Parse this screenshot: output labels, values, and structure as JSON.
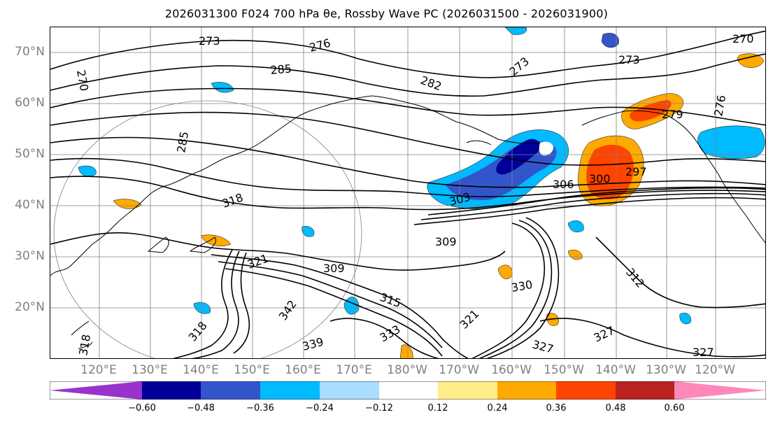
{
  "title": "2026031300 F024 700 hPa θe, Rossby Wave PC (2026031500 - 2026031900)",
  "map": {
    "lat_labels": [
      "70°N",
      "60°N",
      "50°N",
      "40°N",
      "30°N",
      "20°N"
    ],
    "lon_labels": [
      "120°E",
      "130°E",
      "140°E",
      "150°E",
      "160°E",
      "170°E",
      "180°W",
      "170°W",
      "160°W",
      "150°W",
      "140°W",
      "130°W",
      "120°W"
    ],
    "contour_labels": [
      "270",
      "273",
      "276",
      "285",
      "282",
      "273",
      "273",
      "270",
      "279",
      "276",
      "285",
      "303",
      "306",
      "300",
      "297",
      "309",
      "312",
      "309",
      "321",
      "318",
      "315",
      "342",
      "339",
      "333",
      "321",
      "327",
      "327",
      "330",
      "327",
      "318",
      "318"
    ],
    "contour_color": "#000000",
    "grid_color": "#808080"
  },
  "colorbar": {
    "colors": [
      "#9933cc",
      "#000099",
      "#3355cc",
      "#00bbff",
      "#aaddff",
      "#ffffff",
      "#ffee88",
      "#ffaa00",
      "#ff4400",
      "#bb2222",
      "#ff88aa",
      "#ff88bb"
    ],
    "end_colors": {
      "low": "#9933cc",
      "high": "#ff88bb"
    },
    "tick_labels": [
      "−0.60",
      "−0.48",
      "−0.36",
      "−0.24",
      "−0.12",
      "0.12",
      "0.24",
      "0.36",
      "0.48",
      "0.60"
    ]
  }
}
